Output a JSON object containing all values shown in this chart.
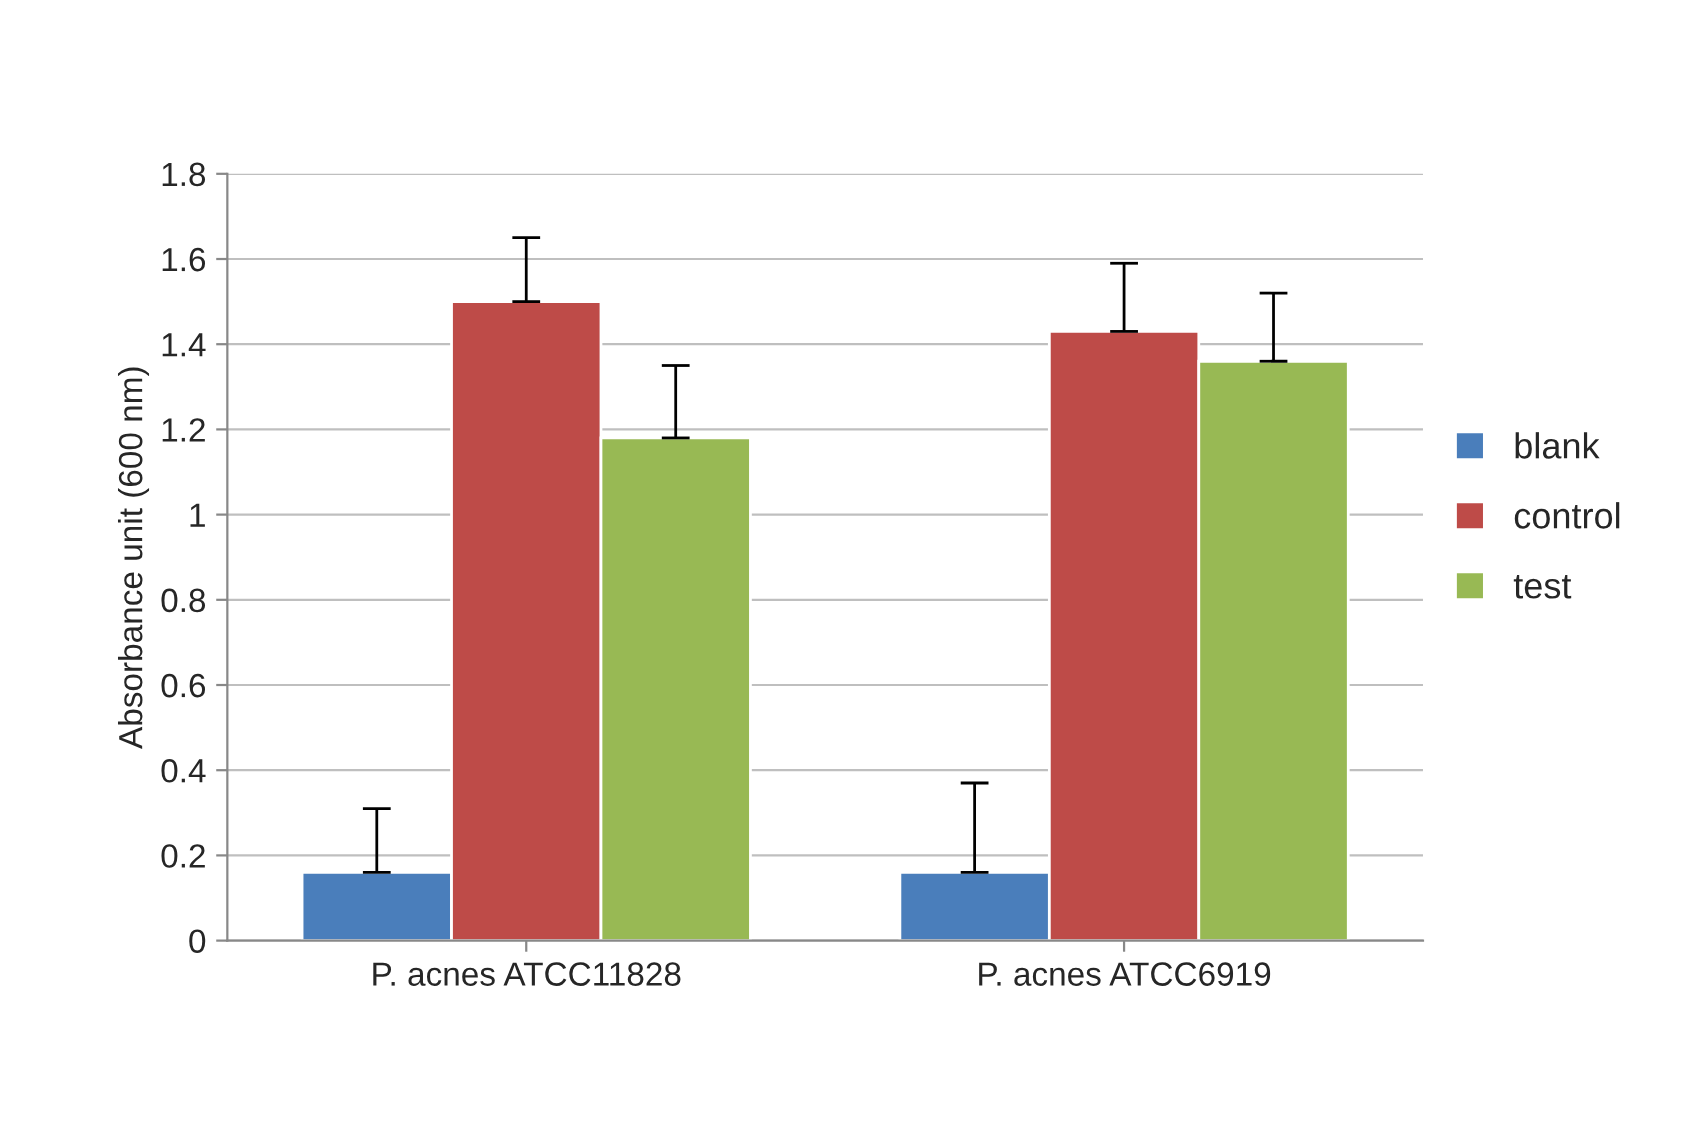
{
  "chart_data": {
    "type": "bar",
    "ylabel": "Absorbance unit (600 nm)",
    "categories": [
      "P. acnes ATCC11828",
      "P. acnes ATCC6919"
    ],
    "series": [
      {
        "name": "blank",
        "color": "#4a7ebb",
        "values": [
          0.16,
          0.16
        ],
        "errors": [
          [
            0.16,
            0.31
          ],
          [
            0.16,
            0.37
          ]
        ]
      },
      {
        "name": "control",
        "color": "#be4b48",
        "values": [
          1.5,
          1.43
        ],
        "errors": [
          [
            1.5,
            1.65
          ],
          [
            1.43,
            1.59
          ]
        ]
      },
      {
        "name": "test",
        "color": "#98b954",
        "values": [
          1.18,
          1.36
        ],
        "errors": [
          [
            1.18,
            1.35
          ],
          [
            1.36,
            1.52
          ]
        ]
      }
    ],
    "ylim": [
      0,
      1.8
    ],
    "yticks": [
      0,
      0.2,
      0.4,
      0.6,
      0.8,
      1,
      1.2,
      1.4,
      1.6,
      1.8
    ],
    "grid": "y",
    "legend": "right"
  }
}
